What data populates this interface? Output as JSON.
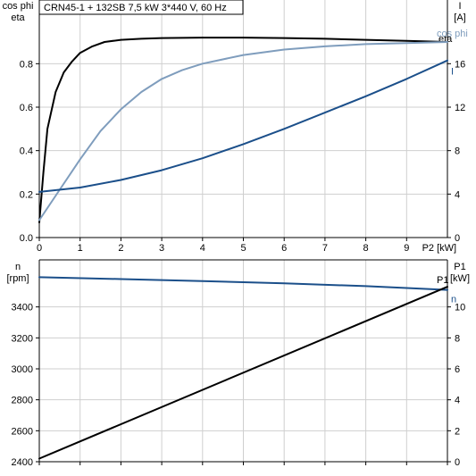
{
  "chart_data": [
    {
      "type": "line",
      "title": "CRN45-1 + 132SB   7,5 kW   3*440 V, 60 Hz",
      "left_axis_label": [
        "cos phi",
        "eta"
      ],
      "right_axis_label": [
        "I",
        "[A]"
      ],
      "xlabel": "P2 [kW]",
      "xlim": [
        0,
        10
      ],
      "ylim_left": [
        0,
        0.9
      ],
      "ylim_right": [
        0,
        18
      ],
      "x_ticks": [
        "0",
        "1",
        "2",
        "3",
        "4",
        "5",
        "6",
        "7",
        "8",
        "9"
      ],
      "y_ticks_left": [
        "0.0",
        "0.2",
        "0.4",
        "0.6",
        "0.8"
      ],
      "y_ticks_right": [
        "0",
        "4",
        "8",
        "12",
        "16"
      ],
      "grid": true,
      "series": [
        {
          "name": "eta",
          "axis": "left",
          "color": "#000000",
          "x": [
            0.0,
            0.1,
            0.2,
            0.4,
            0.6,
            0.8,
            1.0,
            1.3,
            1.6,
            2.0,
            2.5,
            3.0,
            4.0,
            5.0,
            6.0,
            7.0,
            8.0,
            9.0,
            10.0
          ],
          "y": [
            0.07,
            0.3,
            0.5,
            0.67,
            0.76,
            0.81,
            0.85,
            0.88,
            0.9,
            0.91,
            0.915,
            0.918,
            0.92,
            0.92,
            0.918,
            0.915,
            0.91,
            0.905,
            0.9
          ]
        },
        {
          "name": "cos phi",
          "axis": "left",
          "color": "#7f9dbd",
          "x": [
            0.0,
            0.5,
            1.0,
            1.5,
            2.0,
            2.5,
            3.0,
            3.5,
            4.0,
            5.0,
            6.0,
            7.0,
            8.0,
            9.0,
            10.0
          ],
          "y": [
            0.08,
            0.22,
            0.36,
            0.49,
            0.59,
            0.67,
            0.73,
            0.77,
            0.8,
            0.84,
            0.865,
            0.88,
            0.89,
            0.895,
            0.9
          ]
        },
        {
          "name": "I",
          "axis": "right",
          "color": "#1b4f8a",
          "x": [
            0.0,
            1.0,
            2.0,
            3.0,
            4.0,
            5.0,
            6.0,
            7.0,
            8.0,
            9.0,
            10.0
          ],
          "y": [
            4.2,
            4.6,
            5.3,
            6.2,
            7.3,
            8.6,
            10.0,
            11.5,
            13.0,
            14.6,
            16.3
          ]
        }
      ]
    },
    {
      "type": "line",
      "left_axis_label": [
        "n",
        "[rpm]"
      ],
      "right_axis_label": [
        "P1",
        "[kW]"
      ],
      "xlim": [
        0,
        10
      ],
      "ylim_left": [
        2400,
        3600
      ],
      "ylim_right": [
        0,
        12
      ],
      "y_ticks_left": [
        "2400",
        "2600",
        "2800",
        "3000",
        "3200",
        "3400"
      ],
      "y_ticks_right": [
        "0",
        "2",
        "4",
        "6",
        "8",
        "10"
      ],
      "grid": true,
      "series": [
        {
          "name": "n",
          "axis": "left",
          "color": "#1b4f8a",
          "x": [
            0,
            2,
            4,
            6,
            8,
            10
          ],
          "y": [
            3592,
            3580,
            3567,
            3552,
            3534,
            3510
          ]
        },
        {
          "name": "P1",
          "axis": "right",
          "color": "#000000",
          "x": [
            0,
            10
          ],
          "y": [
            0.2,
            11.3
          ]
        }
      ]
    }
  ]
}
